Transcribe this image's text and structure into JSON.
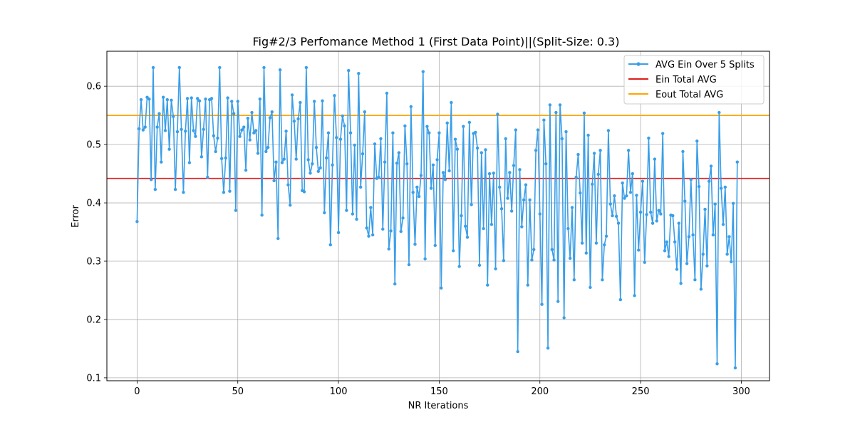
{
  "chart_data": {
    "type": "line",
    "title": "Fig#2/3 Perfomance Method 1 (First Data Point)||(Split-Size: 0.3)",
    "xlabel": "NR Iterations",
    "ylabel": "Error",
    "xlim": [
      -15,
      314
    ],
    "ylim": [
      0.095,
      0.66
    ],
    "xticks": [
      0,
      50,
      100,
      150,
      200,
      250,
      300
    ],
    "yticks": [
      0.1,
      0.2,
      0.3,
      0.4,
      0.5,
      0.6
    ],
    "ytick_labels": [
      "0.1",
      "0.2",
      "0.3",
      "0.4",
      "0.5",
      "0.6"
    ],
    "grid": true,
    "legend_position": "top-right",
    "series": [
      {
        "name": "AVG Ein Over 5 Splits",
        "color": "#3a9ee8",
        "marker": "dot",
        "values": [
          0.368,
          0.527,
          0.577,
          0.525,
          0.53,
          0.581,
          0.578,
          0.44,
          0.632,
          0.423,
          0.53,
          0.553,
          0.47,
          0.581,
          0.524,
          0.577,
          0.492,
          0.576,
          0.548,
          0.423,
          0.522,
          0.632,
          0.526,
          0.418,
          0.523,
          0.579,
          0.469,
          0.58,
          0.524,
          0.514,
          0.579,
          0.575,
          0.479,
          0.526,
          0.578,
          0.444,
          0.577,
          0.579,
          0.515,
          0.488,
          0.511,
          0.632,
          0.476,
          0.418,
          0.477,
          0.58,
          0.42,
          0.574,
          0.553,
          0.387,
          0.574,
          0.514,
          0.525,
          0.53,
          0.456,
          0.545,
          0.508,
          0.555,
          0.52,
          0.524,
          0.485,
          0.578,
          0.379,
          0.632,
          0.488,
          0.495,
          0.546,
          0.556,
          0.438,
          0.47,
          0.339,
          0.628,
          0.469,
          0.475,
          0.523,
          0.431,
          0.396,
          0.585,
          0.54,
          0.475,
          0.544,
          0.572,
          0.421,
          0.419,
          0.632,
          0.474,
          0.451,
          0.467,
          0.574,
          0.495,
          0.454,
          0.46,
          0.575,
          0.383,
          0.477,
          0.52,
          0.328,
          0.465,
          0.584,
          0.512,
          0.349,
          0.509,
          0.549,
          0.532,
          0.387,
          0.627,
          0.52,
          0.381,
          0.499,
          0.372,
          0.622,
          0.427,
          0.484,
          0.556,
          0.357,
          0.343,
          0.392,
          0.345,
          0.501,
          0.442,
          0.444,
          0.51,
          0.355,
          0.47,
          0.588,
          0.321,
          0.352,
          0.52,
          0.261,
          0.468,
          0.486,
          0.351,
          0.374,
          0.532,
          0.467,
          0.294,
          0.565,
          0.418,
          0.329,
          0.427,
          0.411,
          0.447,
          0.625,
          0.304,
          0.531,
          0.52,
          0.425,
          0.465,
          0.327,
          0.474,
          0.52,
          0.254,
          0.452,
          0.44,
          0.537,
          0.455,
          0.572,
          0.318,
          0.509,
          0.492,
          0.291,
          0.378,
          0.531,
          0.36,
          0.341,
          0.538,
          0.397,
          0.519,
          0.521,
          0.494,
          0.293,
          0.486,
          0.356,
          0.491,
          0.259,
          0.45,
          0.363,
          0.451,
          0.287,
          0.552,
          0.427,
          0.39,
          0.301,
          0.51,
          0.408,
          0.452,
          0.386,
          0.464,
          0.525,
          0.145,
          0.457,
          0.359,
          0.405,
          0.431,
          0.259,
          0.405,
          0.302,
          0.32,
          0.49,
          0.525,
          0.381,
          0.226,
          0.542,
          0.467,
          0.151,
          0.568,
          0.32,
          0.302,
          0.555,
          0.231,
          0.568,
          0.51,
          0.203,
          0.522,
          0.356,
          0.305,
          0.392,
          0.268,
          0.444,
          0.483,
          0.417,
          0.331,
          0.554,
          0.314,
          0.516,
          0.255,
          0.432,
          0.485,
          0.331,
          0.449,
          0.49,
          0.268,
          0.328,
          0.343,
          0.524,
          0.398,
          0.378,
          0.412,
          0.377,
          0.365,
          0.234,
          0.434,
          0.408,
          0.412,
          0.49,
          0.418,
          0.45,
          0.241,
          0.413,
          0.319,
          0.384,
          0.437,
          0.298,
          0.38,
          0.511,
          0.384,
          0.365,
          0.475,
          0.369,
          0.387,
          0.381,
          0.519,
          0.318,
          0.333,
          0.308,
          0.379,
          0.378,
          0.333,
          0.286,
          0.365,
          0.262,
          0.488,
          0.403,
          0.296,
          0.342,
          0.44,
          0.345,
          0.268,
          0.506,
          0.428,
          0.252,
          0.312,
          0.389,
          0.292,
          0.437,
          0.463,
          0.345,
          0.398,
          0.124,
          0.555,
          0.425,
          0.363,
          0.427,
          0.312,
          0.342,
          0.299,
          0.399,
          0.117,
          0.47
        ]
      },
      {
        "name": "Ein Total AVG",
        "color": "#e01b1b",
        "type": "hline",
        "value": 0.442
      },
      {
        "name": "Eout Total AVG",
        "color": "#ffa500",
        "type": "hline",
        "value": 0.55
      }
    ]
  }
}
